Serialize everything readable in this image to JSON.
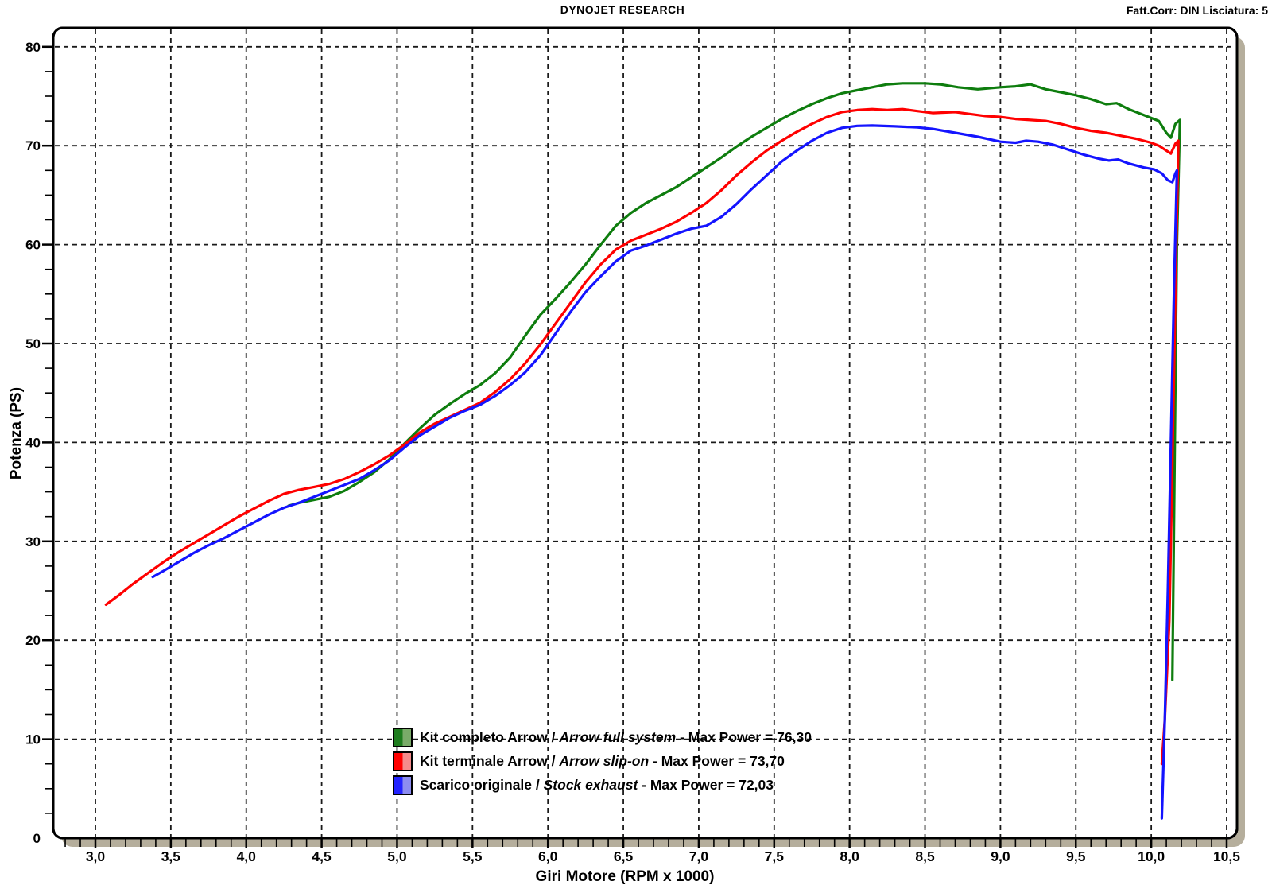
{
  "header": {
    "title": "DYNOJET RESEARCH",
    "correction": "Fatt.Corr: DIN  Lisciatura: 5"
  },
  "legend": {
    "sep": " / ",
    "dash": " - "
  },
  "chart_data": {
    "type": "line",
    "title": "DYNOJET RESEARCH",
    "annotation": "Fatt.Corr: DIN  Lisciatura: 5",
    "xlabel": "Giri Motore (RPM x 1000)",
    "ylabel": "Potenza (PS)",
    "xlim": [
      2.72,
      10.57
    ],
    "ylim": [
      0,
      82
    ],
    "x_major_ticks": [
      3.0,
      3.5,
      4.0,
      4.5,
      5.0,
      5.5,
      6.0,
      6.5,
      7.0,
      7.5,
      8.0,
      8.5,
      9.0,
      9.5,
      10.0,
      10.5
    ],
    "x_tick_labels": [
      "3,0",
      "3,5",
      "4,0",
      "4,5",
      "5,0",
      "5,5",
      "6,0",
      "6,5",
      "7,0",
      "7,5",
      "8,0",
      "8,5",
      "9,0",
      "9,5",
      "10,0",
      "10,5"
    ],
    "x_minor_step": 0.1,
    "y_major_ticks": [
      0,
      10,
      20,
      30,
      40,
      50,
      60,
      70,
      80
    ],
    "y_tick_labels": [
      "0",
      "10",
      "20",
      "30",
      "40",
      "50",
      "60",
      "70",
      "80"
    ],
    "y_minor_step": 2.5,
    "grid": "dashed-on-majors",
    "legend_position": "bottom-center-inside",
    "frame_shadow_color": "#b5ae9c",
    "series": [
      {
        "name": "Kit completo Arrow",
        "name_en": "Arrow full system",
        "power_text": "Max Power = 76,30",
        "max_power": 76.3,
        "color": "#0e7d0e",
        "legend_fill": [
          "#1e7d1e",
          "#7aab69"
        ],
        "points": [
          [
            4.28,
            33.6
          ],
          [
            4.35,
            33.9
          ],
          [
            4.45,
            34.2
          ],
          [
            4.55,
            34.5
          ],
          [
            4.65,
            35.1
          ],
          [
            4.75,
            36.0
          ],
          [
            4.85,
            37.0
          ],
          [
            4.95,
            38.3
          ],
          [
            5.05,
            39.9
          ],
          [
            5.15,
            41.4
          ],
          [
            5.25,
            42.8
          ],
          [
            5.35,
            43.9
          ],
          [
            5.45,
            44.9
          ],
          [
            5.55,
            45.8
          ],
          [
            5.65,
            47.0
          ],
          [
            5.75,
            48.6
          ],
          [
            5.85,
            50.8
          ],
          [
            5.95,
            52.9
          ],
          [
            6.05,
            54.5
          ],
          [
            6.15,
            56.2
          ],
          [
            6.25,
            58.0
          ],
          [
            6.35,
            60.0
          ],
          [
            6.45,
            61.9
          ],
          [
            6.55,
            63.2
          ],
          [
            6.65,
            64.2
          ],
          [
            6.75,
            65.0
          ],
          [
            6.85,
            65.8
          ],
          [
            6.95,
            66.8
          ],
          [
            7.05,
            67.8
          ],
          [
            7.15,
            68.8
          ],
          [
            7.25,
            69.9
          ],
          [
            7.35,
            70.9
          ],
          [
            7.45,
            71.8
          ],
          [
            7.55,
            72.7
          ],
          [
            7.65,
            73.5
          ],
          [
            7.75,
            74.2
          ],
          [
            7.85,
            74.8
          ],
          [
            7.95,
            75.3
          ],
          [
            8.05,
            75.6
          ],
          [
            8.15,
            75.9
          ],
          [
            8.25,
            76.2
          ],
          [
            8.35,
            76.3
          ],
          [
            8.5,
            76.3
          ],
          [
            8.6,
            76.2
          ],
          [
            8.72,
            75.9
          ],
          [
            8.85,
            75.7
          ],
          [
            9.0,
            75.9
          ],
          [
            9.1,
            76.0
          ],
          [
            9.2,
            76.2
          ],
          [
            9.3,
            75.7
          ],
          [
            9.4,
            75.4
          ],
          [
            9.5,
            75.1
          ],
          [
            9.6,
            74.7
          ],
          [
            9.7,
            74.2
          ],
          [
            9.77,
            74.3
          ],
          [
            9.85,
            73.7
          ],
          [
            9.95,
            73.1
          ],
          [
            10.05,
            72.5
          ],
          [
            10.1,
            71.3
          ],
          [
            10.13,
            70.8
          ],
          [
            10.16,
            72.2
          ],
          [
            10.19,
            72.6
          ],
          [
            10.17,
            60
          ],
          [
            10.16,
            46
          ],
          [
            10.15,
            31
          ],
          [
            10.14,
            16
          ]
        ]
      },
      {
        "name": "Kit terminale Arrow",
        "name_en": "Arrow slip-on",
        "power_text": "Max Power = 73,70",
        "max_power": 73.7,
        "color": "#ff0000",
        "legend_fill": [
          "#ff0000",
          "#f58b8b"
        ],
        "points": [
          [
            3.07,
            23.6
          ],
          [
            3.15,
            24.5
          ],
          [
            3.25,
            25.7
          ],
          [
            3.35,
            26.8
          ],
          [
            3.45,
            27.9
          ],
          [
            3.55,
            28.9
          ],
          [
            3.65,
            29.8
          ],
          [
            3.75,
            30.7
          ],
          [
            3.85,
            31.6
          ],
          [
            3.95,
            32.5
          ],
          [
            4.05,
            33.3
          ],
          [
            4.15,
            34.1
          ],
          [
            4.25,
            34.8
          ],
          [
            4.35,
            35.2
          ],
          [
            4.45,
            35.5
          ],
          [
            4.55,
            35.8
          ],
          [
            4.65,
            36.3
          ],
          [
            4.75,
            37.0
          ],
          [
            4.85,
            37.8
          ],
          [
            4.95,
            38.7
          ],
          [
            5.05,
            39.8
          ],
          [
            5.15,
            41.0
          ],
          [
            5.25,
            41.9
          ],
          [
            5.35,
            42.6
          ],
          [
            5.45,
            43.3
          ],
          [
            5.55,
            44.0
          ],
          [
            5.65,
            45.1
          ],
          [
            5.75,
            46.4
          ],
          [
            5.85,
            48.0
          ],
          [
            5.95,
            49.9
          ],
          [
            6.05,
            52.0
          ],
          [
            6.15,
            54.1
          ],
          [
            6.25,
            56.2
          ],
          [
            6.35,
            58.0
          ],
          [
            6.45,
            59.5
          ],
          [
            6.55,
            60.4
          ],
          [
            6.65,
            61.0
          ],
          [
            6.75,
            61.6
          ],
          [
            6.85,
            62.3
          ],
          [
            6.95,
            63.2
          ],
          [
            7.05,
            64.2
          ],
          [
            7.15,
            65.5
          ],
          [
            7.25,
            67.0
          ],
          [
            7.35,
            68.3
          ],
          [
            7.45,
            69.5
          ],
          [
            7.55,
            70.5
          ],
          [
            7.65,
            71.4
          ],
          [
            7.75,
            72.2
          ],
          [
            7.85,
            72.9
          ],
          [
            7.95,
            73.4
          ],
          [
            8.05,
            73.6
          ],
          [
            8.15,
            73.7
          ],
          [
            8.25,
            73.6
          ],
          [
            8.35,
            73.7
          ],
          [
            8.45,
            73.5
          ],
          [
            8.55,
            73.3
          ],
          [
            8.7,
            73.4
          ],
          [
            8.8,
            73.2
          ],
          [
            8.9,
            73.0
          ],
          [
            9.0,
            72.9
          ],
          [
            9.1,
            72.7
          ],
          [
            9.2,
            72.6
          ],
          [
            9.3,
            72.5
          ],
          [
            9.4,
            72.2
          ],
          [
            9.5,
            71.8
          ],
          [
            9.6,
            71.5
          ],
          [
            9.7,
            71.3
          ],
          [
            9.8,
            71.0
          ],
          [
            9.9,
            70.7
          ],
          [
            10.0,
            70.3
          ],
          [
            10.05,
            70.0
          ],
          [
            10.1,
            69.5
          ],
          [
            10.13,
            69.2
          ],
          [
            10.16,
            70.2
          ],
          [
            10.18,
            70.5
          ],
          [
            10.16,
            55
          ],
          [
            10.14,
            38
          ],
          [
            10.12,
            22
          ],
          [
            10.09,
            12
          ],
          [
            10.07,
            7.5
          ]
        ]
      },
      {
        "name": "Scarico originale",
        "name_en": "Stock exhaust",
        "power_text": "Max Power = 72,03",
        "max_power": 72.03,
        "color": "#1414ff",
        "legend_fill": [
          "#2323ff",
          "#8c8cf0"
        ],
        "points": [
          [
            3.38,
            26.4
          ],
          [
            3.45,
            27.0
          ],
          [
            3.55,
            27.9
          ],
          [
            3.65,
            28.8
          ],
          [
            3.75,
            29.6
          ],
          [
            3.85,
            30.3
          ],
          [
            3.95,
            31.1
          ],
          [
            4.05,
            31.9
          ],
          [
            4.15,
            32.7
          ],
          [
            4.25,
            33.4
          ],
          [
            4.35,
            33.9
          ],
          [
            4.45,
            34.5
          ],
          [
            4.55,
            35.1
          ],
          [
            4.65,
            35.7
          ],
          [
            4.75,
            36.3
          ],
          [
            4.85,
            37.2
          ],
          [
            4.95,
            38.2
          ],
          [
            5.05,
            39.5
          ],
          [
            5.15,
            40.7
          ],
          [
            5.25,
            41.6
          ],
          [
            5.35,
            42.5
          ],
          [
            5.45,
            43.2
          ],
          [
            5.55,
            43.8
          ],
          [
            5.65,
            44.7
          ],
          [
            5.75,
            45.8
          ],
          [
            5.85,
            47.1
          ],
          [
            5.95,
            48.8
          ],
          [
            6.05,
            51.0
          ],
          [
            6.15,
            53.2
          ],
          [
            6.25,
            55.2
          ],
          [
            6.35,
            56.8
          ],
          [
            6.45,
            58.3
          ],
          [
            6.55,
            59.4
          ],
          [
            6.65,
            59.9
          ],
          [
            6.75,
            60.5
          ],
          [
            6.85,
            61.1
          ],
          [
            6.95,
            61.6
          ],
          [
            7.05,
            61.9
          ],
          [
            7.15,
            62.8
          ],
          [
            7.25,
            64.1
          ],
          [
            7.35,
            65.6
          ],
          [
            7.45,
            67.0
          ],
          [
            7.55,
            68.4
          ],
          [
            7.65,
            69.5
          ],
          [
            7.75,
            70.5
          ],
          [
            7.85,
            71.3
          ],
          [
            7.95,
            71.8
          ],
          [
            8.05,
            72.0
          ],
          [
            8.15,
            72.03
          ],
          [
            8.3,
            71.95
          ],
          [
            8.45,
            71.85
          ],
          [
            8.55,
            71.7
          ],
          [
            8.7,
            71.3
          ],
          [
            8.85,
            70.9
          ],
          [
            9.0,
            70.4
          ],
          [
            9.1,
            70.3
          ],
          [
            9.17,
            70.5
          ],
          [
            9.25,
            70.4
          ],
          [
            9.35,
            70.1
          ],
          [
            9.45,
            69.6
          ],
          [
            9.55,
            69.1
          ],
          [
            9.65,
            68.7
          ],
          [
            9.72,
            68.5
          ],
          [
            9.78,
            68.6
          ],
          [
            9.85,
            68.2
          ],
          [
            9.95,
            67.8
          ],
          [
            10.02,
            67.6
          ],
          [
            10.07,
            67.2
          ],
          [
            10.11,
            66.5
          ],
          [
            10.14,
            66.3
          ],
          [
            10.16,
            67.2
          ],
          [
            10.17,
            67.5
          ],
          [
            10.15,
            55
          ],
          [
            10.13,
            40
          ],
          [
            10.11,
            25
          ],
          [
            10.09,
            12
          ],
          [
            10.07,
            2
          ]
        ]
      }
    ]
  }
}
